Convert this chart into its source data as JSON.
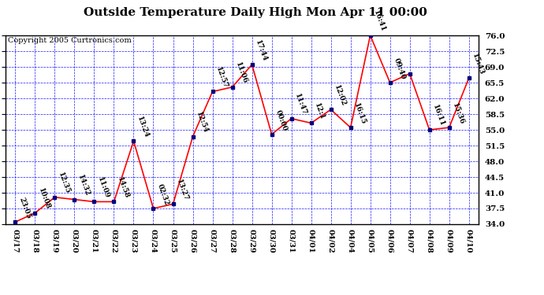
{
  "title": "Outside Temperature Daily High Mon Apr 11 00:00",
  "copyright": "Copyright 2005 Curtronics.com",
  "x_labels": [
    "03/17",
    "03/18",
    "03/19",
    "03/20",
    "03/21",
    "03/22",
    "03/23",
    "03/24",
    "03/25",
    "03/26",
    "03/27",
    "03/28",
    "03/29",
    "03/30",
    "03/31",
    "04/01",
    "04/02",
    "04/04",
    "04/05",
    "04/06",
    "04/07",
    "04/08",
    "04/09",
    "04/10"
  ],
  "y_values": [
    34.5,
    36.5,
    40.0,
    39.5,
    39.0,
    39.0,
    52.5,
    37.5,
    38.5,
    53.5,
    63.5,
    64.5,
    69.5,
    54.0,
    57.5,
    56.5,
    59.5,
    55.5,
    76.0,
    65.5,
    67.5,
    55.0,
    55.5,
    66.5
  ],
  "annotations": [
    "23:05",
    "10:08",
    "12:35",
    "14:32",
    "11:09",
    "14:58",
    "13:24",
    "02:32",
    "13:27",
    "12:54",
    "12:57",
    "11:06",
    "17:44",
    "00:00",
    "11:47",
    "12:1",
    "12:02",
    "16:15",
    "16:41",
    "09:40",
    "",
    "16:11",
    "15:36",
    "15:43"
  ],
  "ylim": [
    34.0,
    76.0
  ],
  "yticks": [
    34.0,
    37.5,
    41.0,
    44.5,
    48.0,
    51.5,
    55.0,
    58.5,
    62.0,
    65.5,
    69.0,
    72.5,
    76.0
  ],
  "line_color": "red",
  "marker_color": "#000080",
  "grid_color": "blue",
  "bg_color": "white",
  "title_fontsize": 11,
  "annotation_fontsize": 6.5,
  "copyright_fontsize": 7,
  "ann_rotation": -70
}
